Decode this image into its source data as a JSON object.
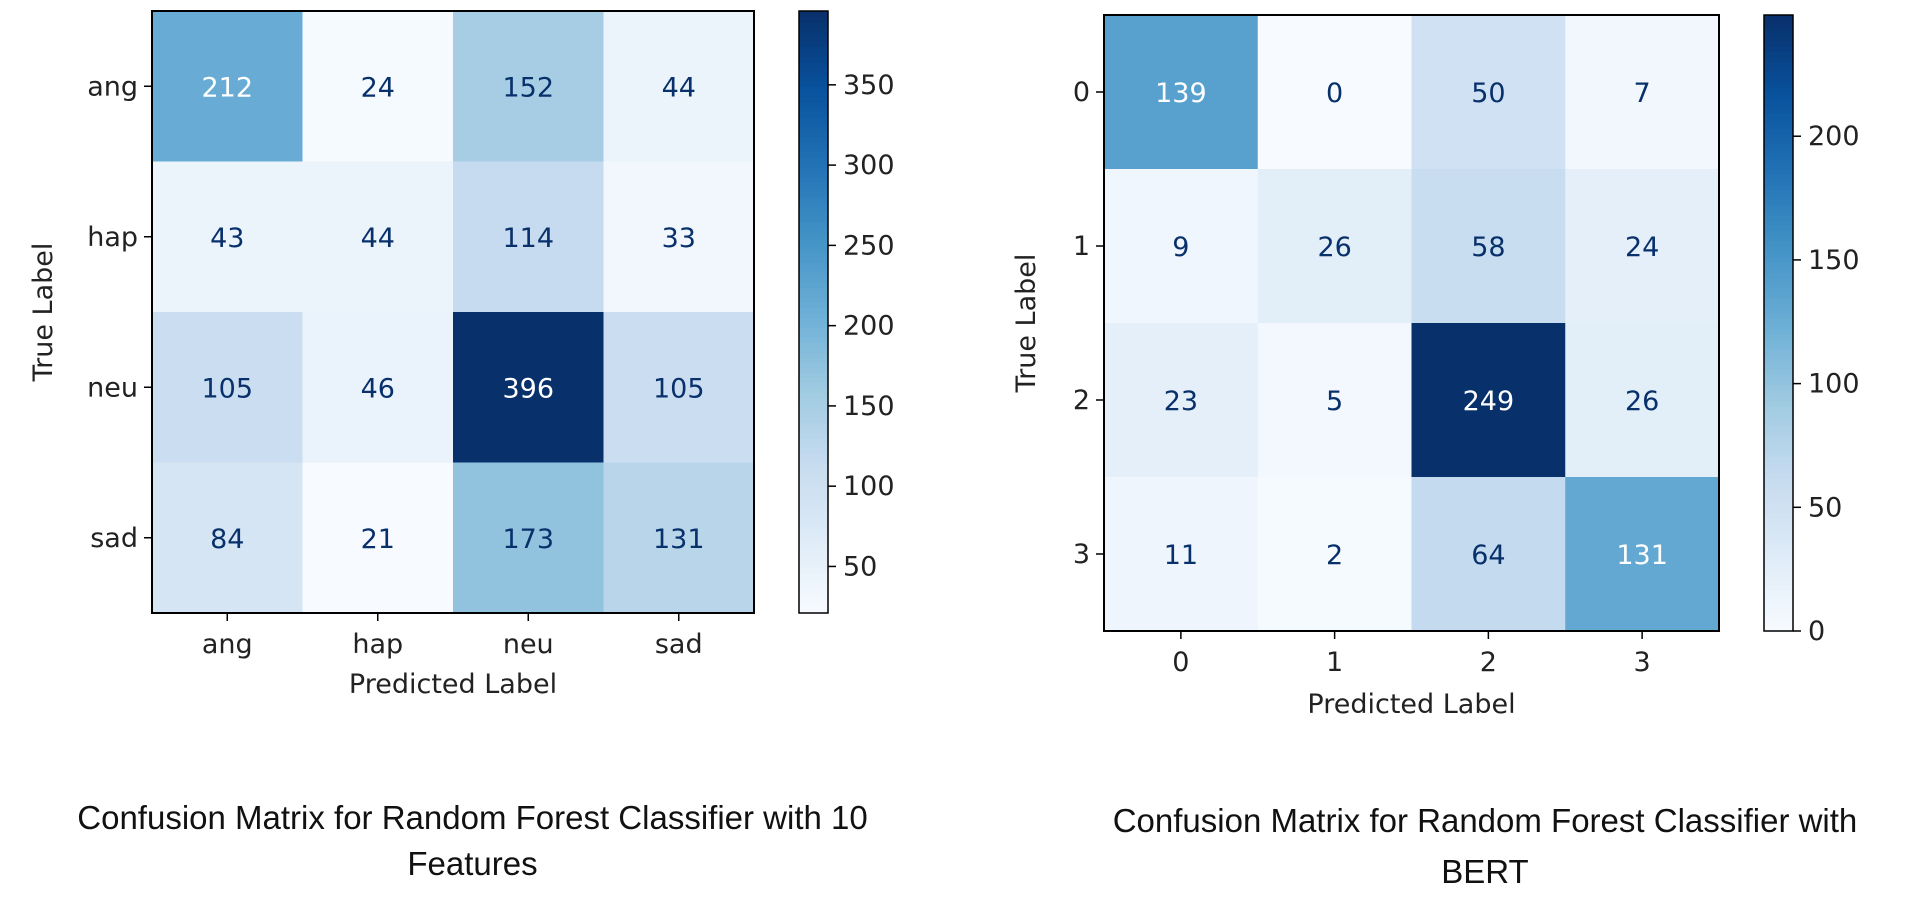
{
  "colors": {
    "cmap": [
      "#f7fbff",
      "#deebf7",
      "#c6dbef",
      "#9ecae1",
      "#6baed6",
      "#4292c6",
      "#2171b5",
      "#08519c",
      "#08306b"
    ],
    "text_on_light": "#08306b",
    "text_on_dark": "#ffffff",
    "axis": "#000000"
  },
  "chart_data": [
    {
      "type": "heatmap",
      "title": "",
      "xlabel": "Predicted Label",
      "ylabel": "True Label",
      "x_categories": [
        "ang",
        "hap",
        "neu",
        "sad"
      ],
      "y_categories": [
        "ang",
        "hap",
        "neu",
        "sad"
      ],
      "values": [
        [
          212,
          24,
          152,
          44
        ],
        [
          43,
          44,
          114,
          33
        ],
        [
          105,
          46,
          396,
          105
        ],
        [
          84,
          21,
          173,
          131
        ]
      ],
      "colorbar": {
        "min": 21,
        "max": 396,
        "ticks": [
          50,
          100,
          150,
          200,
          250,
          300,
          350
        ]
      },
      "caption": [
        "Confusion Matrix for  Random Forest Classifier with 10",
        "Features"
      ]
    },
    {
      "type": "heatmap",
      "title": "",
      "xlabel": "Predicted Label",
      "ylabel": "True Label",
      "x_categories": [
        "0",
        "1",
        "2",
        "3"
      ],
      "y_categories": [
        "0",
        "1",
        "2",
        "3"
      ],
      "values": [
        [
          139,
          0,
          50,
          7
        ],
        [
          9,
          26,
          58,
          24
        ],
        [
          23,
          5,
          249,
          26
        ],
        [
          11,
          2,
          64,
          131
        ]
      ],
      "colorbar": {
        "min": 0,
        "max": 249,
        "ticks": [
          0,
          50,
          100,
          150,
          200
        ]
      },
      "caption": [
        "Confusion Matrix for  Random Forest Classifier with",
        "BERT"
      ]
    }
  ]
}
